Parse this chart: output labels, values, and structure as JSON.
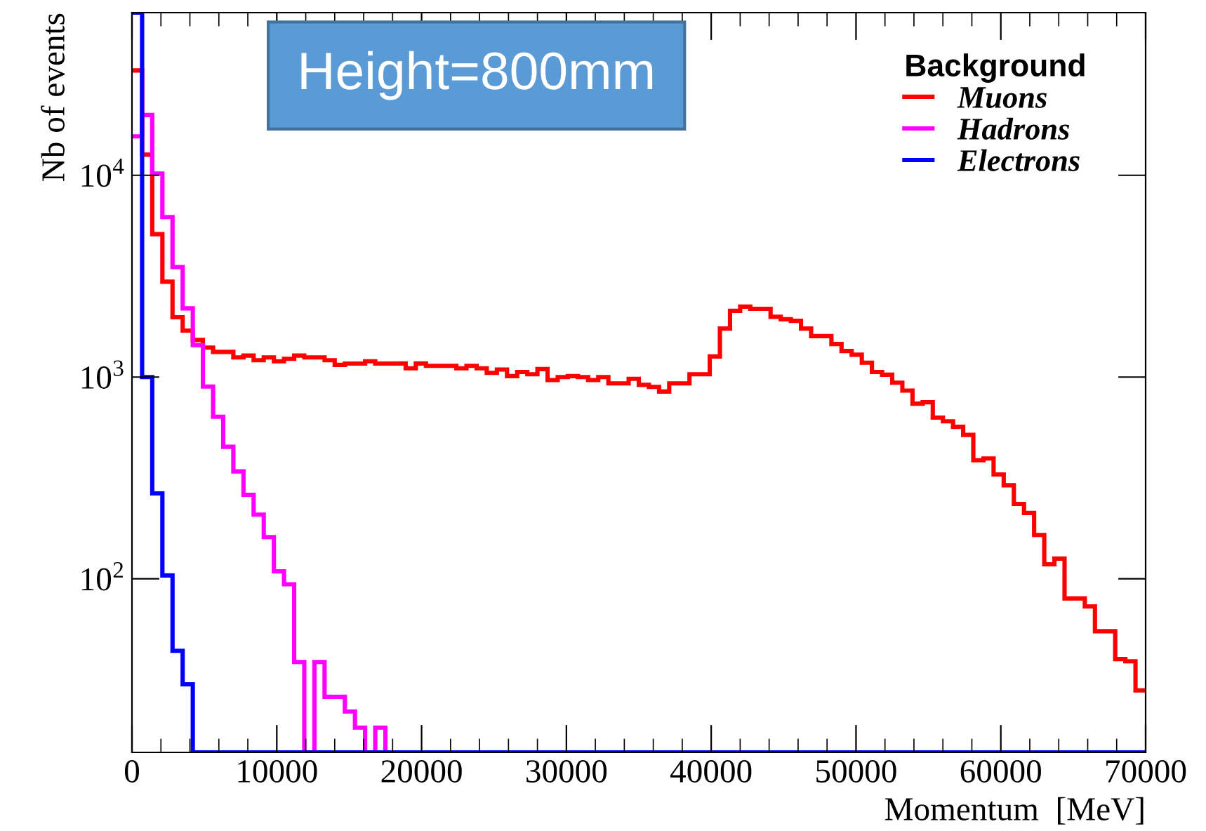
{
  "chart_data": {
    "type": "histogram",
    "xlabel": "Momentum  [MeV]",
    "ylabel": "Nb of events",
    "legend_title": "Background",
    "annotations": [
      "Height=800mm"
    ],
    "bins": [
      0,
      700,
      1400,
      2100,
      2800,
      3500,
      4200,
      4900,
      5600,
      6300,
      7000,
      7700,
      8400,
      9100,
      9800,
      10500,
      11200,
      11900,
      12600,
      13300,
      14000,
      14700,
      15400,
      16100,
      16800,
      17500,
      18200,
      18900,
      19600,
      20300,
      21000,
      21700,
      22400,
      23100,
      23800,
      24500,
      25200,
      25900,
      26600,
      27300,
      28000,
      28700,
      29400,
      30100,
      30800,
      31500,
      32200,
      32900,
      33600,
      34300,
      35000,
      35700,
      36400,
      37100,
      37800,
      38500,
      39200,
      39900,
      40600,
      41300,
      42000,
      42700,
      43400,
      44100,
      44800,
      45500,
      46200,
      46900,
      47600,
      48300,
      49000,
      49700,
      50400,
      51100,
      51800,
      52500,
      53200,
      53900,
      54600,
      55300,
      56000,
      56700,
      57400,
      58100,
      58800,
      59500,
      60200,
      60900,
      61600,
      62300,
      63000,
      63700,
      64400,
      65100,
      65800,
      66500,
      67200,
      67900,
      68600,
      69300,
      70000
    ],
    "series": [
      {
        "name": "Muons",
        "color": "#ff0000",
        "values": [
          33100,
          12650,
          5110,
          2970,
          1980,
          1700,
          1527,
          1400,
          1333,
          1333,
          1251,
          1278,
          1212,
          1251,
          1198,
          1231,
          1278,
          1251,
          1251,
          1212,
          1149,
          1167,
          1167,
          1198,
          1167,
          1167,
          1168,
          1105,
          1168,
          1137,
          1137,
          1137,
          1105,
          1137,
          1105,
          1049,
          1090,
          1011,
          1060,
          1032,
          1095,
          966,
          1000,
          1011,
          1000,
          966,
          1000,
          930,
          930,
          980,
          915,
          894,
          848,
          930,
          930,
          1032,
          1032,
          1265,
          1740,
          2130,
          2235,
          2180,
          2180,
          1990,
          1935,
          1900,
          1740,
          1596,
          1596,
          1459,
          1346,
          1291,
          1179,
          1060,
          1027,
          938,
          857,
          738,
          750,
          630,
          604,
          567,
          517,
          387,
          395,
          329,
          291,
          235,
          212,
          165,
          118,
          126,
          80,
          80,
          73,
          55,
          55,
          40,
          39,
          28
        ]
      },
      {
        "name": "Hadrons",
        "color": "#ff00ff",
        "values": [
          15600,
          19900,
          10200,
          6210,
          3510,
          2190,
          1440,
          897,
          636,
          451,
          341,
          261,
          208,
          161,
          109,
          94,
          38.7,
          null,
          38.7,
          26,
          26,
          22,
          18.3,
          null,
          18.3,
          null,
          null,
          null,
          null,
          null,
          null,
          null,
          null,
          null,
          null,
          null,
          null,
          null,
          null,
          null,
          null,
          null,
          null,
          null,
          null,
          null,
          null,
          null,
          null,
          null,
          null,
          null,
          null,
          null,
          null,
          null,
          null,
          null,
          null,
          null,
          null,
          null,
          null,
          null,
          null,
          null,
          null,
          null,
          null,
          null,
          null,
          null,
          null,
          null,
          null,
          null,
          null,
          null,
          null,
          null,
          null,
          null,
          null,
          null,
          null,
          null,
          null,
          null,
          null,
          null,
          null,
          null,
          null,
          null,
          null,
          null,
          null,
          null,
          null,
          null
        ]
      },
      {
        "name": "Electrons",
        "color": "#0000ff",
        "values": [
          64000,
          1000,
          265,
          104,
          44,
          30,
          null,
          null,
          null,
          null,
          null,
          null,
          null,
          null,
          null,
          null,
          null,
          null,
          null,
          null,
          null,
          null,
          null,
          null,
          null,
          null,
          null,
          null,
          null,
          null,
          null,
          null,
          null,
          null,
          null,
          null,
          null,
          null,
          null,
          null,
          null,
          null,
          null,
          null,
          null,
          null,
          null,
          null,
          null,
          null,
          null,
          null,
          null,
          null,
          null,
          null,
          null,
          null,
          null,
          null,
          null,
          null,
          null,
          null,
          null,
          null,
          null,
          null,
          null,
          null,
          null,
          null,
          null,
          null,
          null,
          null,
          null,
          null,
          null,
          null,
          null,
          null,
          null,
          null,
          null,
          null,
          null,
          null,
          null,
          null,
          null,
          null,
          null,
          null,
          null,
          null,
          null,
          null,
          null,
          null
        ]
      }
    ],
    "log": "y",
    "xlim": [
      0,
      70000
    ],
    "ylim": [
      13.8,
      64000
    ],
    "xticks": [
      0,
      10000,
      20000,
      30000,
      40000,
      50000,
      60000,
      70000
    ],
    "yticks": [
      {
        "value": 100,
        "label": "10$^{2}$"
      },
      {
        "value": 1000,
        "label": "10$^{3}$"
      },
      {
        "value": 10000,
        "label": "10$^{4}$"
      }
    ],
    "legend": "top right",
    "grid": false
  }
}
